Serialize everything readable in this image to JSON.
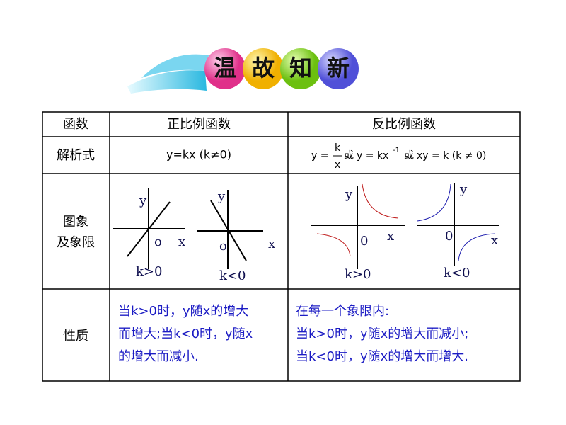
{
  "banner": {
    "characters": [
      "温",
      "故",
      "知",
      "新"
    ]
  },
  "table": {
    "header": [
      "函数",
      "正比例函数",
      "反比例函数"
    ],
    "formula_row": {
      "label": "解析式",
      "direct": "y=kx (k≠0)",
      "inverse": {
        "lhs": "y =",
        "numerator": "k",
        "denominator": "x",
        "or1": "或",
        "form2": "y = kx",
        "exponent": "-1",
        "or2": "或",
        "form3": "xy = k (k ≠ 0)"
      }
    },
    "graph_row": {
      "label_lines": [
        "图象",
        "及象限"
      ],
      "graphs": [
        {
          "y": "y",
          "x": "x",
          "origin": "o",
          "caption": "k>0"
        },
        {
          "y": "y",
          "x": "x",
          "origin": "o",
          "caption": "k<0"
        },
        {
          "y": "y",
          "x": "x",
          "origin": "0",
          "caption": "k>0"
        },
        {
          "y": "y",
          "x": "x",
          "origin": "0",
          "caption": "k<0"
        }
      ]
    },
    "property_row": {
      "label": "性质",
      "direct_lines": [
        "当k>0时，y随x的增大",
        "而增大;当k<0时，y随x",
        "的增大而减小."
      ],
      "inverse_lines": [
        "在每一个象限内:",
        "当k>0时，y随x的增大而减小;",
        "当k<0时，y随x的增大而增大."
      ]
    }
  }
}
